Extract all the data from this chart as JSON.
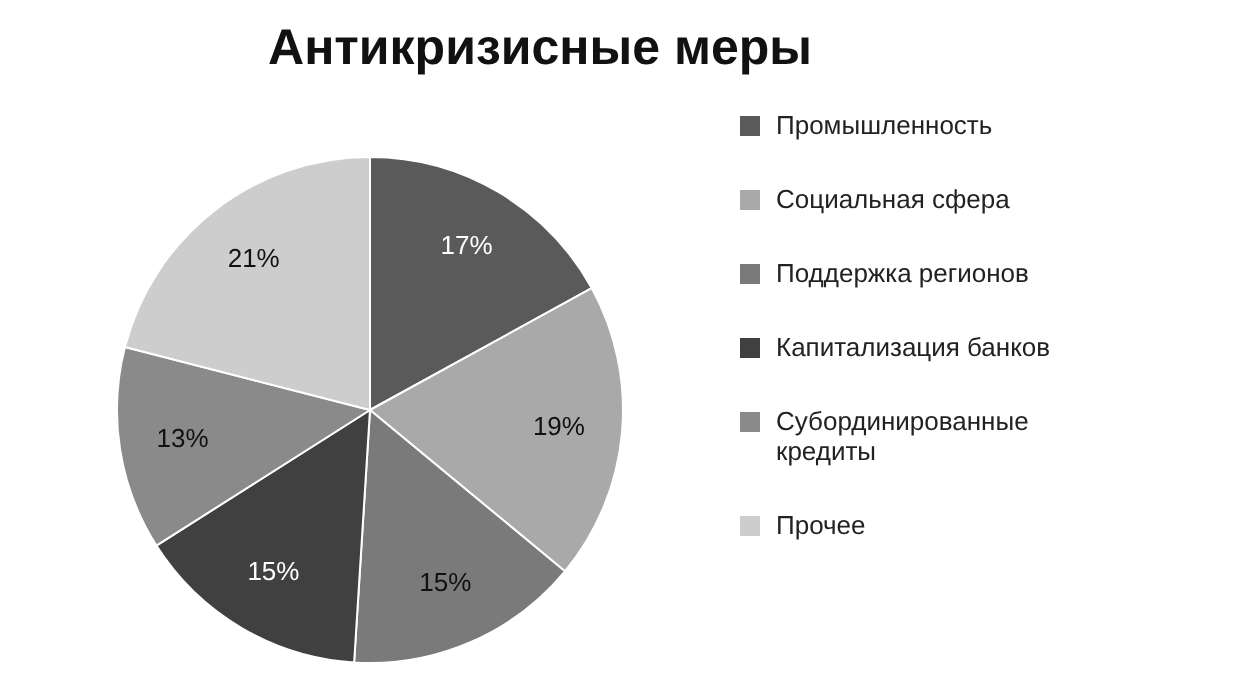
{
  "chart_data": {
    "type": "pie",
    "title": "Антикризисные меры",
    "categories": [
      "Промышленность",
      "Социальная сфера",
      "Поддержка регионов",
      "Капитализация банков",
      "Субординированные кредиты",
      "Прочее"
    ],
    "values": [
      17,
      19,
      15,
      15,
      13,
      21
    ],
    "colors": [
      "#5a5a5a",
      "#a9a9a9",
      "#7a7a7a",
      "#404040",
      "#8a8a8a",
      "#cdcdcd"
    ],
    "value_labels": [
      "17%",
      "19%",
      "15%",
      "15%",
      "13%",
      "21%"
    ],
    "legend": "right"
  }
}
